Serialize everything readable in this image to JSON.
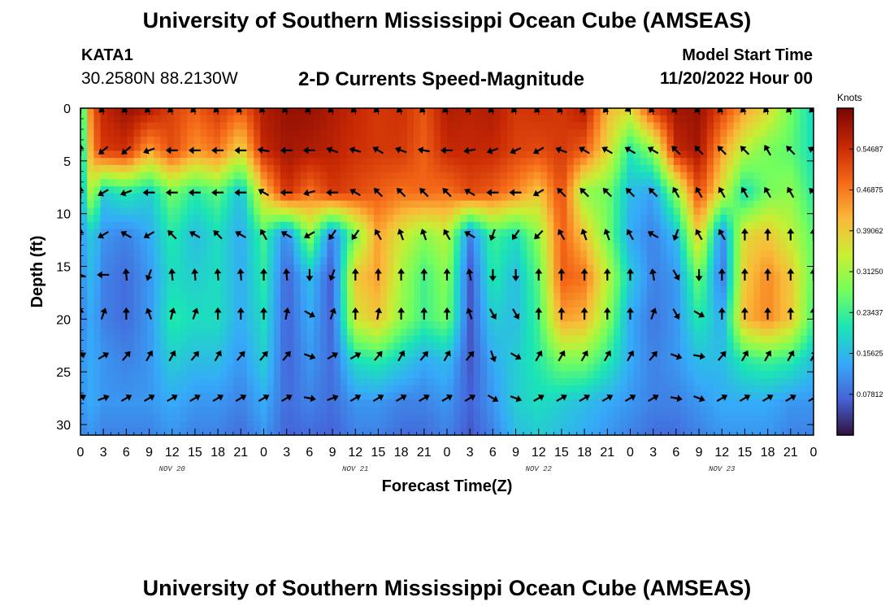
{
  "page": {
    "title": "University of Southern Mississippi Ocean Cube (AMSEAS)",
    "bottom_title": "University of Southern Mississippi Ocean Cube (AMSEAS)",
    "station_id": "KATA1",
    "coordinates": "30.2580N  88.2130W",
    "subtitle": "2-D Currents Speed-Magnitude",
    "start_label": "Model Start Time",
    "start_value": "11/20/2022 Hour 00"
  },
  "chart_data": {
    "type": "heatmap",
    "title": "2-D Currents Speed-Magnitude",
    "xlabel": "Forecast Time(Z)",
    "ylabel": "Depth (ft)",
    "xlim": [
      0,
      96
    ],
    "ylim": [
      31,
      0
    ],
    "x_tick_labels": [
      "0",
      "3",
      "6",
      "9",
      "12",
      "15",
      "18",
      "21",
      "0",
      "3",
      "6",
      "9",
      "12",
      "15",
      "18",
      "21",
      "0",
      "3",
      "6",
      "9",
      "12",
      "15",
      "18",
      "21",
      "0",
      "3",
      "6",
      "9",
      "12",
      "15",
      "18",
      "21",
      "0"
    ],
    "y_ticks": [
      0,
      5,
      10,
      15,
      20,
      25,
      30
    ],
    "day_labels": [
      {
        "label": "NOV 20",
        "hour": 12
      },
      {
        "label": "NOV 21",
        "hour": 36
      },
      {
        "label": "NOV 22",
        "hour": 60
      },
      {
        "label": "NOV 23",
        "hour": 84
      }
    ],
    "colorbar": {
      "units": "Knots",
      "min": 0,
      "max": 0.625,
      "tick_values": [
        0.54687,
        0.46875,
        0.39062,
        0.3125,
        0.23437,
        0.15625,
        0.07812
      ],
      "tick_labels": [
        "0.54687",
        "0.46875",
        "0.39062",
        "0.31250",
        "0.23437",
        "0.15625",
        "0.07812"
      ]
    },
    "vector_depths_ft": [
      0,
      4,
      8,
      12,
      15.8,
      19.5,
      23.5,
      27.5
    ],
    "vector_hours": [
      0,
      3,
      6,
      9,
      12,
      15,
      18,
      21,
      24,
      27,
      30,
      33,
      36,
      39,
      42,
      45,
      48,
      51,
      54,
      57,
      60,
      63,
      66,
      69,
      72,
      75,
      78,
      81,
      84,
      87,
      90,
      93,
      96
    ],
    "speed_profile_knots": {
      "depths_ft": [
        0,
        4,
        8,
        12,
        16,
        20,
        24,
        28,
        31
      ],
      "hours": [
        0,
        1.5,
        3,
        6,
        9,
        12,
        15,
        18,
        21,
        24,
        27,
        30,
        33,
        36,
        39,
        42,
        45,
        48,
        51,
        54,
        57,
        60,
        63,
        66,
        69,
        72,
        75,
        78,
        81,
        84,
        87,
        90,
        93,
        96
      ],
      "values": [
        [
          0.18,
          0.5,
          0.56,
          0.6,
          0.58,
          0.53,
          0.5,
          0.54,
          0.5,
          0.58,
          0.6,
          0.6,
          0.58,
          0.56,
          0.54,
          0.55,
          0.51,
          0.58,
          0.57,
          0.58,
          0.54,
          0.55,
          0.54,
          0.58,
          0.42,
          0.38,
          0.54,
          0.59,
          0.6,
          0.53,
          0.44,
          0.38,
          0.28,
          0.19
        ],
        [
          0.16,
          0.46,
          0.54,
          0.55,
          0.44,
          0.52,
          0.45,
          0.48,
          0.38,
          0.56,
          0.59,
          0.58,
          0.57,
          0.55,
          0.54,
          0.54,
          0.5,
          0.56,
          0.56,
          0.56,
          0.53,
          0.52,
          0.54,
          0.5,
          0.38,
          0.22,
          0.3,
          0.56,
          0.59,
          0.44,
          0.33,
          0.28,
          0.26,
          0.2
        ],
        [
          0.14,
          0.34,
          0.18,
          0.22,
          0.18,
          0.28,
          0.22,
          0.26,
          0.16,
          0.4,
          0.55,
          0.48,
          0.54,
          0.52,
          0.5,
          0.48,
          0.49,
          0.48,
          0.52,
          0.5,
          0.46,
          0.4,
          0.52,
          0.3,
          0.28,
          0.16,
          0.13,
          0.3,
          0.52,
          0.36,
          0.2,
          0.28,
          0.3,
          0.22
        ],
        [
          0.12,
          0.18,
          0.12,
          0.1,
          0.14,
          0.22,
          0.16,
          0.2,
          0.14,
          0.24,
          0.1,
          0.3,
          0.09,
          0.28,
          0.44,
          0.36,
          0.3,
          0.34,
          0.1,
          0.24,
          0.2,
          0.3,
          0.5,
          0.4,
          0.28,
          0.14,
          0.1,
          0.16,
          0.4,
          0.1,
          0.38,
          0.4,
          0.34,
          0.26
        ],
        [
          0.11,
          0.16,
          0.1,
          0.08,
          0.12,
          0.2,
          0.18,
          0.2,
          0.14,
          0.22,
          0.07,
          0.16,
          0.06,
          0.4,
          0.44,
          0.32,
          0.24,
          0.3,
          0.06,
          0.22,
          0.16,
          0.26,
          0.5,
          0.48,
          0.34,
          0.18,
          0.1,
          0.12,
          0.28,
          0.08,
          0.4,
          0.46,
          0.4,
          0.26
        ],
        [
          0.1,
          0.14,
          0.1,
          0.08,
          0.12,
          0.22,
          0.2,
          0.2,
          0.14,
          0.2,
          0.07,
          0.14,
          0.07,
          0.36,
          0.4,
          0.3,
          0.24,
          0.28,
          0.06,
          0.18,
          0.16,
          0.24,
          0.44,
          0.42,
          0.3,
          0.14,
          0.09,
          0.12,
          0.22,
          0.14,
          0.42,
          0.46,
          0.4,
          0.24
        ],
        [
          0.12,
          0.14,
          0.12,
          0.1,
          0.12,
          0.18,
          0.16,
          0.16,
          0.12,
          0.18,
          0.07,
          0.12,
          0.08,
          0.2,
          0.22,
          0.18,
          0.14,
          0.16,
          0.06,
          0.14,
          0.18,
          0.22,
          0.28,
          0.28,
          0.22,
          0.14,
          0.1,
          0.12,
          0.16,
          0.16,
          0.22,
          0.24,
          0.22,
          0.16
        ],
        [
          0.12,
          0.14,
          0.12,
          0.12,
          0.12,
          0.14,
          0.12,
          0.12,
          0.1,
          0.14,
          0.08,
          0.1,
          0.08,
          0.12,
          0.12,
          0.1,
          0.1,
          0.12,
          0.07,
          0.12,
          0.18,
          0.2,
          0.18,
          0.16,
          0.14,
          0.12,
          0.1,
          0.1,
          0.12,
          0.14,
          0.14,
          0.14,
          0.12,
          0.12
        ],
        [
          0.1,
          0.12,
          0.1,
          0.1,
          0.1,
          0.12,
          0.1,
          0.1,
          0.08,
          0.12,
          0.07,
          0.08,
          0.07,
          0.1,
          0.1,
          0.08,
          0.08,
          0.1,
          0.06,
          0.1,
          0.16,
          0.18,
          0.16,
          0.14,
          0.12,
          0.1,
          0.08,
          0.08,
          0.1,
          0.12,
          0.12,
          0.12,
          0.1,
          0.1
        ]
      ]
    },
    "current_direction_deg": {
      "note": "direction current flows toward, degrees clockwise from north, one row per vector depth",
      "rows": [
        [
          0,
          225,
          225,
          225,
          225,
          225,
          225,
          225,
          225,
          225,
          225,
          225,
          225,
          225,
          225,
          225,
          225,
          225,
          225,
          225,
          225,
          225,
          225,
          225,
          240,
          225,
          225,
          225,
          225,
          225,
          225,
          225,
          225
        ],
        [
          0,
          230,
          230,
          250,
          270,
          270,
          270,
          270,
          280,
          270,
          270,
          290,
          285,
          300,
          290,
          280,
          270,
          260,
          250,
          245,
          240,
          290,
          300,
          300,
          300,
          300,
          315,
          315,
          315,
          315,
          330,
          315,
          300
        ],
        [
          0,
          240,
          250,
          270,
          270,
          270,
          270,
          270,
          300,
          270,
          255,
          270,
          300,
          315,
          315,
          315,
          315,
          300,
          270,
          270,
          240,
          315,
          315,
          315,
          315,
          315,
          330,
          330,
          330,
          330,
          330,
          330,
          315
        ],
        [
          0,
          240,
          300,
          240,
          315,
          300,
          315,
          300,
          330,
          300,
          240,
          215,
          215,
          330,
          340,
          340,
          330,
          300,
          200,
          215,
          225,
          330,
          340,
          340,
          330,
          300,
          200,
          330,
          330,
          0,
          0,
          0,
          0
        ],
        [
          290,
          270,
          355,
          200,
          355,
          355,
          355,
          355,
          0,
          355,
          180,
          200,
          0,
          0,
          0,
          0,
          0,
          350,
          180,
          180,
          0,
          0,
          0,
          0,
          0,
          350,
          150,
          180,
          0,
          0,
          0,
          0,
          0
        ],
        [
          0,
          20,
          0,
          340,
          15,
          20,
          0,
          0,
          0,
          10,
          120,
          20,
          0,
          10,
          0,
          0,
          0,
          340,
          150,
          150,
          0,
          0,
          0,
          0,
          0,
          20,
          150,
          120,
          0,
          0,
          0,
          0,
          0
        ],
        [
          60,
          60,
          40,
          30,
          30,
          40,
          30,
          40,
          40,
          40,
          110,
          60,
          60,
          40,
          30,
          40,
          30,
          40,
          160,
          120,
          30,
          30,
          30,
          30,
          30,
          40,
          110,
          100,
          40,
          30,
          30,
          30,
          30
        ],
        [
          60,
          70,
          60,
          60,
          60,
          60,
          60,
          60,
          60,
          60,
          100,
          70,
          60,
          60,
          60,
          60,
          60,
          60,
          120,
          110,
          60,
          60,
          60,
          60,
          60,
          60,
          100,
          110,
          60,
          60,
          60,
          60,
          60
        ]
      ]
    },
    "colors": {
      "background": "#ffffff",
      "text": "#000000",
      "colormap": [
        "#30123b",
        "#4662d7",
        "#36aaf9",
        "#1ae4b6",
        "#72fe5e",
        "#c8ef34",
        "#faba39",
        "#f66b19",
        "#ca2a04",
        "#7a0403"
      ]
    }
  }
}
